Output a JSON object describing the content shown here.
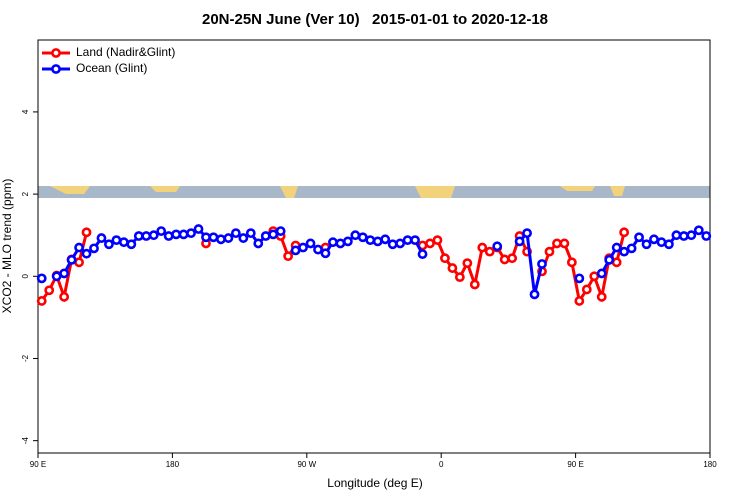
{
  "chart_data": {
    "type": "line",
    "title": "20N-25N June (Ver 10)   2015-01-01 to 2020-12-18",
    "xlabel": "Longitude (deg E)",
    "ylabel": "XCO2 - MLO trend (ppm)",
    "xlim": [
      90,
      540
    ],
    "xticks": [
      {
        "value": 90,
        "label": "90 E"
      },
      {
        "value": 180,
        "label": "180"
      },
      {
        "value": 270,
        "label": "90 W"
      },
      {
        "value": 360,
        "label": "0"
      },
      {
        "value": 450,
        "label": "90 E"
      },
      {
        "value": 540,
        "label": "180"
      }
    ],
    "ylim": [
      -4.3,
      5.75
    ],
    "yticks": [
      -4,
      -2,
      0,
      2,
      4
    ],
    "legend": "top-left",
    "x": [
      92.5,
      97.5,
      102.5,
      107.5,
      112.5,
      117.5,
      122.5,
      127.5,
      132.5,
      137.5,
      142.5,
      147.5,
      152.5,
      157.5,
      162.5,
      167.5,
      172.5,
      177.5,
      182.5,
      187.5,
      192.5,
      197.5,
      202.5,
      207.5,
      212.5,
      217.5,
      222.5,
      227.5,
      232.5,
      237.5,
      242.5,
      247.5,
      252.5,
      257.5,
      262.5,
      267.5,
      272.5,
      277.5,
      282.5,
      287.5,
      292.5,
      297.5,
      302.5,
      307.5,
      312.5,
      317.5,
      322.5,
      327.5,
      332.5,
      337.5,
      342.5,
      347.5,
      352.5,
      357.5,
      362.5,
      367.5,
      372.5,
      377.5,
      382.5,
      387.5,
      392.5,
      397.5,
      402.5,
      407.5,
      412.5,
      417.5,
      422.5,
      427.5,
      432.5,
      437.5,
      442.5,
      447.5,
      452.5,
      457.5,
      462.5,
      467.5,
      472.5,
      477.5,
      482.5,
      487.5,
      492.5,
      497.5,
      502.5,
      507.5,
      512.5,
      517.5,
      522.5,
      527.5,
      532.5,
      537.5
    ],
    "series": [
      {
        "name": "Land (Nadir&Glint)",
        "color": "#ff0000",
        "values": [
          -0.6,
          -0.34,
          0.02,
          -0.5,
          0.41,
          0.34,
          1.07,
          null,
          null,
          null,
          null,
          null,
          null,
          null,
          null,
          null,
          null,
          null,
          null,
          null,
          null,
          null,
          0.8,
          null,
          null,
          null,
          null,
          null,
          null,
          null,
          null,
          1.1,
          0.98,
          0.49,
          0.75,
          null,
          null,
          null,
          0.7,
          null,
          null,
          null,
          null,
          null,
          null,
          null,
          null,
          null,
          null,
          null,
          null,
          0.75,
          0.8,
          0.88,
          0.44,
          0.2,
          -0.02,
          0.32,
          -0.2,
          0.7,
          0.6,
          0.7,
          0.41,
          0.44,
          0.98,
          0.6,
          null,
          0.12,
          0.6,
          0.8,
          0.8,
          0.34,
          -0.6,
          -0.32,
          0.0,
          -0.5,
          0.44,
          0.34,
          1.07,
          null,
          null,
          null,
          null,
          null,
          null,
          null,
          null,
          null,
          null,
          null
        ]
      },
      {
        "name": "Ocean (Glint)",
        "color": "#0000ff",
        "values": [
          -0.05,
          null,
          0.0,
          0.07,
          0.4,
          0.7,
          0.55,
          0.68,
          0.93,
          0.78,
          0.88,
          0.83,
          0.78,
          0.98,
          0.98,
          1.0,
          1.1,
          0.98,
          1.02,
          1.02,
          1.05,
          1.15,
          0.95,
          0.95,
          0.9,
          0.93,
          1.05,
          0.93,
          1.05,
          0.8,
          0.98,
          1.02,
          1.1,
          null,
          0.63,
          0.7,
          0.8,
          0.65,
          0.56,
          0.83,
          0.8,
          0.85,
          1.0,
          0.95,
          0.88,
          0.85,
          0.9,
          0.78,
          0.8,
          0.88,
          0.88,
          0.54,
          null,
          null,
          null,
          null,
          null,
          null,
          null,
          null,
          null,
          0.73,
          null,
          null,
          0.85,
          1.05,
          -0.44,
          0.3,
          null,
          null,
          null,
          null,
          -0.05,
          null,
          null,
          0.07,
          0.4,
          0.7,
          0.6,
          0.68,
          0.95,
          0.78,
          0.9,
          0.83,
          0.78,
          1.0,
          0.98,
          1.0,
          1.12,
          0.98
        ]
      }
    ]
  }
}
